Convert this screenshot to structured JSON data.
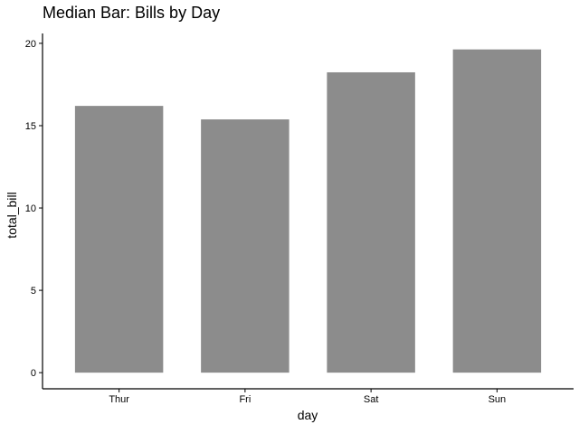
{
  "chart_data": {
    "type": "bar",
    "title": "Median Bar: Bills by Day",
    "xlabel": "day",
    "ylabel": "total_bill",
    "categories": [
      "Thur",
      "Fri",
      "Sat",
      "Sun"
    ],
    "values": [
      16.2,
      15.38,
      18.24,
      19.63
    ],
    "yticks": [
      0,
      5,
      10,
      15,
      20
    ],
    "ylim": [
      -0.98,
      20.6
    ],
    "grid": false,
    "legend": "none",
    "bar_color": "#8c8c8c"
  }
}
